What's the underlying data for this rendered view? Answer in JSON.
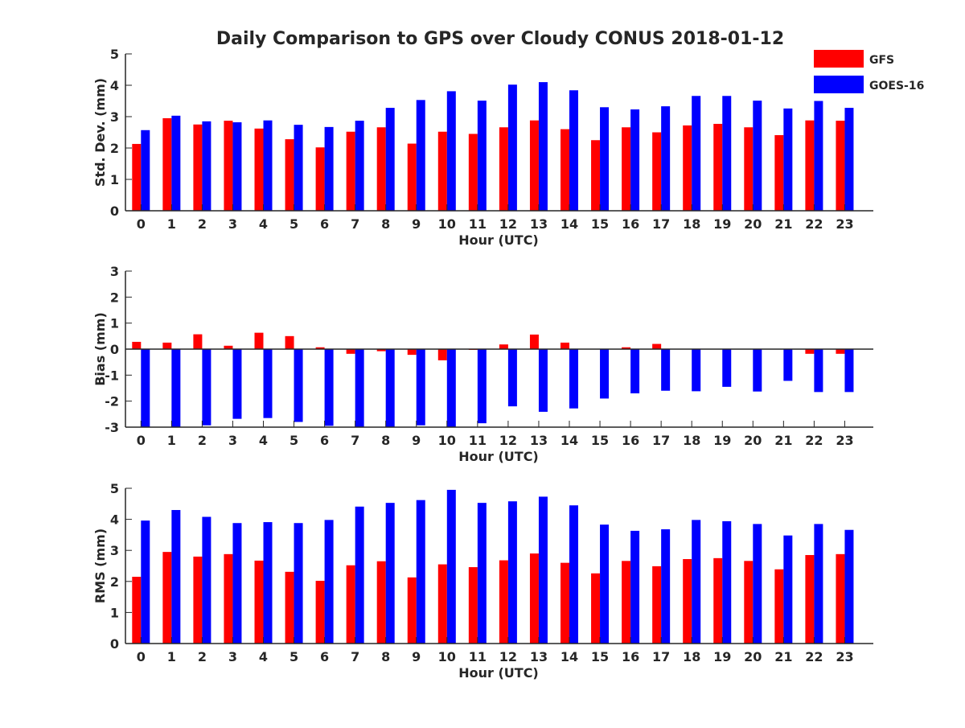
{
  "title": "Daily Comparison to GPS over Cloudy CONUS 2018-01-12",
  "legend": {
    "placement": "top-right",
    "entries": [
      {
        "name": "GFS",
        "color": "#ff0000"
      },
      {
        "name": "GOES-16",
        "color": "#0000ff"
      }
    ]
  },
  "chart_data": [
    {
      "type": "bar",
      "title": "",
      "xlabel": "Hour (UTC)",
      "ylabel": "Std. Dev. (mm)",
      "ylim": [
        0,
        5
      ],
      "yticks": [
        0,
        1,
        2,
        3,
        4,
        5
      ],
      "categories": [
        "0",
        "1",
        "2",
        "3",
        "4",
        "5",
        "6",
        "7",
        "8",
        "9",
        "10",
        "11",
        "12",
        "13",
        "14",
        "15",
        "16",
        "17",
        "18",
        "19",
        "20",
        "21",
        "22",
        "23"
      ],
      "series": [
        {
          "name": "GFS",
          "color": "#ff0000",
          "values": [
            2.13,
            2.95,
            2.75,
            2.87,
            2.62,
            2.28,
            2.02,
            2.52,
            2.66,
            2.14,
            2.52,
            2.45,
            2.66,
            2.88,
            2.6,
            2.25,
            2.66,
            2.5,
            2.72,
            2.77,
            2.66,
            2.41,
            2.88,
            2.87
          ]
        },
        {
          "name": "GOES-16",
          "color": "#0000ff",
          "values": [
            2.57,
            3.03,
            2.85,
            2.82,
            2.88,
            2.74,
            2.67,
            2.87,
            3.28,
            3.53,
            3.81,
            3.51,
            4.02,
            4.1,
            3.84,
            3.3,
            3.23,
            3.33,
            3.66,
            3.66,
            3.51,
            3.26,
            3.5,
            3.28
          ]
        }
      ]
    },
    {
      "type": "bar",
      "title": "",
      "xlabel": "Hour (UTC)",
      "ylabel": "Bias (mm)",
      "ylim": [
        -3,
        3
      ],
      "yticks": [
        -3,
        -2,
        -1,
        0,
        1,
        2,
        3
      ],
      "categories": [
        "0",
        "1",
        "2",
        "3",
        "4",
        "5",
        "6",
        "7",
        "8",
        "9",
        "10",
        "11",
        "12",
        "13",
        "14",
        "15",
        "16",
        "17",
        "18",
        "19",
        "20",
        "21",
        "22",
        "23"
      ],
      "series": [
        {
          "name": "GFS",
          "color": "#ff0000",
          "values": [
            0.28,
            0.25,
            0.57,
            0.13,
            0.63,
            0.5,
            0.07,
            -0.18,
            -0.08,
            -0.22,
            -0.43,
            -0.03,
            0.18,
            0.56,
            0.25,
            0.0,
            0.07,
            0.2,
            0.0,
            0.0,
            0.0,
            0.0,
            -0.18,
            -0.18
          ]
        },
        {
          "name": "GOES-16",
          "color": "#0000ff",
          "values": [
            -3.0,
            -3.0,
            -2.93,
            -2.68,
            -2.65,
            -2.8,
            -2.95,
            -3.0,
            -3.0,
            -2.93,
            -3.0,
            -2.85,
            -2.2,
            -2.41,
            -2.28,
            -1.9,
            -1.7,
            -1.6,
            -1.62,
            -1.45,
            -1.63,
            -1.22,
            -1.65,
            -1.65
          ]
        }
      ]
    },
    {
      "type": "bar",
      "title": "",
      "xlabel": "Hour (UTC)",
      "ylabel": "RMS (mm)",
      "ylim": [
        0,
        5
      ],
      "yticks": [
        0,
        1,
        2,
        3,
        4,
        5
      ],
      "categories": [
        "0",
        "1",
        "2",
        "3",
        "4",
        "5",
        "6",
        "7",
        "8",
        "9",
        "10",
        "11",
        "12",
        "13",
        "14",
        "15",
        "16",
        "17",
        "18",
        "19",
        "20",
        "21",
        "22",
        "23"
      ],
      "series": [
        {
          "name": "GFS",
          "color": "#ff0000",
          "values": [
            2.15,
            2.95,
            2.8,
            2.88,
            2.67,
            2.31,
            2.02,
            2.52,
            2.65,
            2.13,
            2.55,
            2.46,
            2.68,
            2.9,
            2.6,
            2.26,
            2.66,
            2.49,
            2.72,
            2.75,
            2.66,
            2.39,
            2.85,
            2.88
          ]
        },
        {
          "name": "GOES-16",
          "color": "#0000ff",
          "values": [
            3.96,
            4.3,
            4.08,
            3.88,
            3.91,
            3.88,
            3.98,
            4.41,
            4.53,
            4.62,
            4.95,
            4.53,
            4.58,
            4.73,
            4.45,
            3.83,
            3.63,
            3.68,
            3.98,
            3.94,
            3.85,
            3.48,
            3.85,
            3.66
          ]
        }
      ]
    }
  ]
}
